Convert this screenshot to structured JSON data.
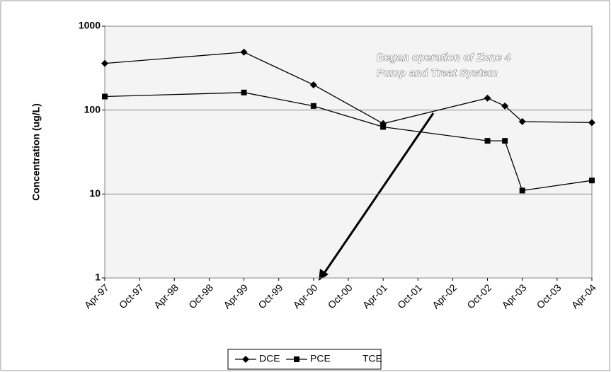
{
  "chart_data": {
    "type": "line",
    "ylabel": "Concentration (ug/L)",
    "annotation": [
      "Began operation of Zone 4",
      "Pump and Treat System"
    ],
    "log_scale_y": true,
    "grid": true,
    "ylim": [
      1,
      1000
    ],
    "yticks": [
      1,
      10,
      100,
      1000
    ],
    "xticks": [
      "Apr-97",
      "Oct-97",
      "Apr-98",
      "Oct-98",
      "Apr-99",
      "Oct-99",
      "Apr-00",
      "Oct-00",
      "Apr-01",
      "Oct-01",
      "Apr-02",
      "Oct-02",
      "Apr-03",
      "Oct-03",
      "Apr-04"
    ],
    "x": [
      "Apr-97",
      "Apr-99",
      "Apr-00",
      "Apr-01",
      "Oct-02",
      "Jan-03",
      "Apr-03",
      "Apr-04"
    ],
    "series": [
      {
        "name": "DCE",
        "color": "#000000",
        "marker": "diamond",
        "values": [
          360,
          490,
          200,
          69,
          139,
          112,
          73,
          71
        ]
      },
      {
        "name": "PCE",
        "color": "#000000",
        "marker": "square",
        "values": [
          145,
          162,
          112,
          63,
          43,
          43,
          11,
          14.5
        ]
      },
      {
        "name": "TCE",
        "color": "#000000",
        "marker": "none",
        "values": [
          null,
          null,
          null,
          null,
          null,
          null,
          null,
          null
        ]
      }
    ],
    "legend": "bottom"
  }
}
